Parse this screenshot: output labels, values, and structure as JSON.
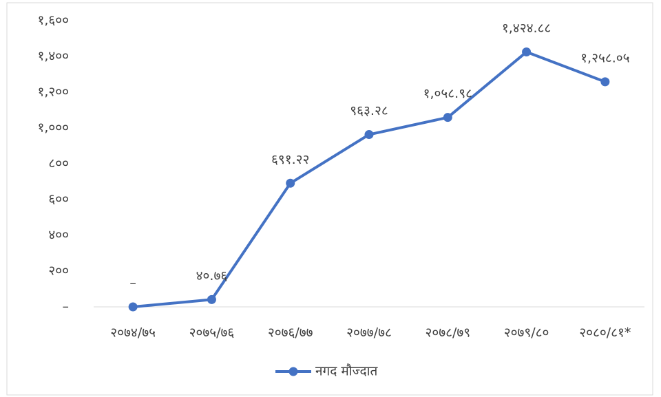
{
  "chart_data": {
    "type": "line",
    "categories": [
      "२०७४/७५",
      "२०७५/७६",
      "२०७६/७७",
      "२०७७/७८",
      "२०७८/७९",
      "२०७९/८०",
      "२०८०/८१*"
    ],
    "series": [
      {
        "name": "नगद मौज्दात",
        "color": "#4472c4",
        "values": [
          0,
          40.76,
          691.22,
          963.28,
          1058.98,
          1424.88,
          1258.05
        ],
        "value_labels": [
          "–",
          "४०.७६",
          "६९१.२२",
          "९६३.२८",
          "१,०५८.९८",
          "१,४२४.८८",
          "१,२५८.०५"
        ]
      }
    ],
    "ylim": [
      0,
      1600
    ],
    "yticks": [
      {
        "value": 0,
        "label": "–"
      },
      {
        "value": 200,
        "label": "२००"
      },
      {
        "value": 400,
        "label": "४००"
      },
      {
        "value": 600,
        "label": "६००"
      },
      {
        "value": 800,
        "label": "८००"
      },
      {
        "value": 1000,
        "label": "१,०००"
      },
      {
        "value": 1200,
        "label": "१,२००"
      },
      {
        "value": 1400,
        "label": "१,४००"
      },
      {
        "value": 1600,
        "label": "१,६००"
      }
    ],
    "grid": false,
    "legend": "bottom"
  }
}
